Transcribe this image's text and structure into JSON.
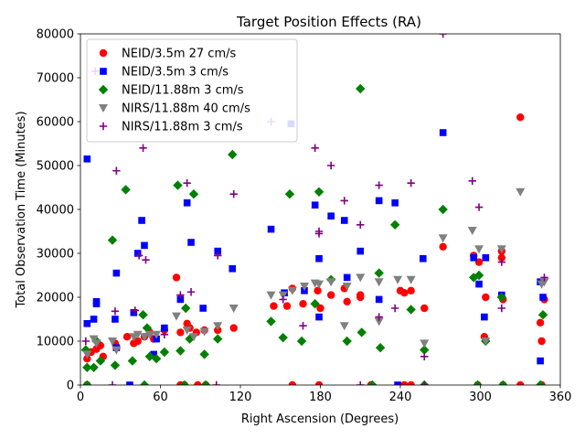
{
  "chart_data": {
    "type": "scatter",
    "title": "Target Position Effects (RA)",
    "xlabel": "Right Ascension (Degrees)",
    "ylabel": "Total Observation Time (Minutes)",
    "xlim": [
      0,
      360
    ],
    "ylim": [
      0,
      80000
    ],
    "xticks": [
      0,
      60,
      120,
      180,
      240,
      300,
      360
    ],
    "yticks": [
      0,
      10000,
      20000,
      30000,
      40000,
      50000,
      60000,
      70000,
      80000
    ],
    "grid": false,
    "legend_position": "upper-left",
    "series": [
      {
        "name": "NEID/3.5m 27 cm/s",
        "marker": "circle",
        "color": "#ff0000",
        "points": [
          [
            5,
            6000
          ],
          [
            8,
            7500
          ],
          [
            12,
            8200
          ],
          [
            15,
            9000
          ],
          [
            17,
            6500
          ],
          [
            26,
            9500
          ],
          [
            27,
            8500
          ],
          [
            35,
            11000
          ],
          [
            40,
            9500
          ],
          [
            43,
            10000
          ],
          [
            48,
            11000
          ],
          [
            52,
            12000
          ],
          [
            55,
            10500
          ],
          [
            63,
            12500
          ],
          [
            72,
            24500
          ],
          [
            75,
            12000
          ],
          [
            80,
            14000
          ],
          [
            82,
            13000
          ],
          [
            87,
            12000
          ],
          [
            93,
            12500
          ],
          [
            103,
            12500
          ],
          [
            115,
            13000
          ],
          [
            145,
            18000
          ],
          [
            155,
            18000
          ],
          [
            159,
            22000
          ],
          [
            167,
            18500
          ],
          [
            178,
            21500
          ],
          [
            180,
            17500
          ],
          [
            188,
            20500
          ],
          [
            198,
            22000
          ],
          [
            200,
            19000
          ],
          [
            210,
            20500
          ],
          [
            210,
            20000
          ],
          [
            240,
            21500
          ],
          [
            243,
            21000
          ],
          [
            248,
            21500
          ],
          [
            258,
            17500
          ],
          [
            272,
            31500
          ],
          [
            295,
            29500
          ],
          [
            299,
            28000
          ],
          [
            303,
            11000
          ],
          [
            304,
            20000
          ],
          [
            316,
            30500
          ],
          [
            316,
            29000
          ],
          [
            317,
            19500
          ],
          [
            330,
            61000
          ],
          [
            345,
            14200
          ],
          [
            346,
            10000
          ],
          [
            348,
            19500
          ],
          [
            5,
            0
          ],
          [
            75,
            0
          ],
          [
            78,
            0
          ],
          [
            88,
            0
          ],
          [
            94,
            0
          ],
          [
            159,
            0
          ],
          [
            179,
            0
          ],
          [
            218,
            0
          ],
          [
            243,
            0
          ],
          [
            248,
            0
          ],
          [
            298,
            0
          ],
          [
            317,
            0
          ],
          [
            330,
            0
          ],
          [
            346,
            0
          ]
        ]
      },
      {
        "name": "NEID/3.5m 3 cm/s",
        "marker": "square",
        "color": "#0000ff",
        "points": [
          [
            5,
            51500
          ],
          [
            5,
            14000
          ],
          [
            10,
            15000
          ],
          [
            12,
            19000
          ],
          [
            12,
            18500
          ],
          [
            26,
            15000
          ],
          [
            27,
            8500
          ],
          [
            27,
            25500
          ],
          [
            37,
            0
          ],
          [
            40,
            16500
          ],
          [
            43,
            30000
          ],
          [
            46,
            37500
          ],
          [
            48,
            31800
          ],
          [
            55,
            7000
          ],
          [
            57,
            10500
          ],
          [
            63,
            13000
          ],
          [
            75,
            19500
          ],
          [
            80,
            41500
          ],
          [
            83,
            32500
          ],
          [
            92,
            17500
          ],
          [
            103,
            30500
          ],
          [
            114,
            26500
          ],
          [
            143,
            35500
          ],
          [
            153,
            21000
          ],
          [
            158,
            59500
          ],
          [
            168,
            21500
          ],
          [
            176,
            41000
          ],
          [
            179,
            15500
          ],
          [
            179,
            28800
          ],
          [
            188,
            38500
          ],
          [
            198,
            37500
          ],
          [
            200,
            24500
          ],
          [
            210,
            30500
          ],
          [
            224,
            42000
          ],
          [
            224,
            19500
          ],
          [
            236,
            41500
          ],
          [
            238,
            0
          ],
          [
            257,
            28800
          ],
          [
            272,
            57500
          ],
          [
            295,
            29000
          ],
          [
            299,
            23000
          ],
          [
            303,
            15500
          ],
          [
            304,
            29000
          ],
          [
            316,
            20500
          ],
          [
            345,
            23500
          ],
          [
            345,
            5500
          ],
          [
            347,
            20000
          ]
        ]
      },
      {
        "name": "NEID/11.88m 3 cm/s",
        "marker": "diamond",
        "color": "#008000",
        "points": [
          [
            4,
            8000
          ],
          [
            5,
            4000
          ],
          [
            10,
            4000
          ],
          [
            12,
            10000
          ],
          [
            15,
            5500
          ],
          [
            24,
            33000
          ],
          [
            26,
            4500
          ],
          [
            34,
            44500
          ],
          [
            39,
            5500
          ],
          [
            47,
            16000
          ],
          [
            50,
            13000
          ],
          [
            52,
            6500
          ],
          [
            57,
            6000
          ],
          [
            63,
            7500
          ],
          [
            73,
            45500
          ],
          [
            75,
            7800
          ],
          [
            79,
            17500
          ],
          [
            82,
            10500
          ],
          [
            85,
            43500
          ],
          [
            93,
            7000
          ],
          [
            103,
            10500
          ],
          [
            114,
            52500
          ],
          [
            143,
            14500
          ],
          [
            152,
            10800
          ],
          [
            157,
            43500
          ],
          [
            166,
            10000
          ],
          [
            176,
            18500
          ],
          [
            179,
            44000
          ],
          [
            188,
            24000
          ],
          [
            200,
            10000
          ],
          [
            210,
            67500
          ],
          [
            211,
            12000
          ],
          [
            224,
            25500
          ],
          [
            225,
            8500
          ],
          [
            236,
            36500
          ],
          [
            248,
            17200
          ],
          [
            258,
            8000
          ],
          [
            272,
            40000
          ],
          [
            295,
            24500
          ],
          [
            299,
            25000
          ],
          [
            304,
            10000
          ],
          [
            316,
            20000
          ],
          [
            347,
            16000
          ],
          [
            5,
            0
          ],
          [
            48,
            0
          ],
          [
            78,
            0
          ],
          [
            94,
            0
          ],
          [
            219,
            0
          ],
          [
            258,
            0
          ],
          [
            298,
            0
          ],
          [
            317,
            0
          ],
          [
            345,
            0
          ]
        ]
      },
      {
        "name": "NIRS/11.88m 40 cm/s",
        "marker": "triangle-down",
        "color": "#808080",
        "points": [
          [
            5,
            7000
          ],
          [
            10,
            10500
          ],
          [
            12,
            9500
          ],
          [
            24,
            10000
          ],
          [
            27,
            8000
          ],
          [
            40,
            11000
          ],
          [
            43,
            11500
          ],
          [
            48,
            11000
          ],
          [
            52,
            11500
          ],
          [
            57,
            11500
          ],
          [
            72,
            15700
          ],
          [
            80,
            12500
          ],
          [
            85,
            11000
          ],
          [
            93,
            12200
          ],
          [
            103,
            13500
          ],
          [
            115,
            17500
          ],
          [
            143,
            20500
          ],
          [
            152,
            20500
          ],
          [
            159,
            21500
          ],
          [
            168,
            22500
          ],
          [
            176,
            23200
          ],
          [
            179,
            23000
          ],
          [
            188,
            23500
          ],
          [
            198,
            13500
          ],
          [
            200,
            22500
          ],
          [
            210,
            24500
          ],
          [
            224,
            23500
          ],
          [
            224,
            14500
          ],
          [
            238,
            24000
          ],
          [
            248,
            24000
          ],
          [
            258,
            9500
          ],
          [
            272,
            33500
          ],
          [
            294,
            35200
          ],
          [
            299,
            31000
          ],
          [
            304,
            10000
          ],
          [
            316,
            31000
          ],
          [
            330,
            44000
          ],
          [
            346,
            23000
          ],
          [
            348,
            23500
          ]
        ]
      },
      {
        "name": "NIRS/11.88m 3 cm/s",
        "marker": "plus",
        "color": "#800080",
        "points": [
          [
            4,
            10000
          ],
          [
            11,
            71500
          ],
          [
            26,
            16800
          ],
          [
            27,
            48800
          ],
          [
            41,
            17000
          ],
          [
            44,
            29500
          ],
          [
            47,
            54000
          ],
          [
            49,
            28500
          ],
          [
            63,
            11500
          ],
          [
            75,
            20500
          ],
          [
            80,
            46000
          ],
          [
            83,
            21200
          ],
          [
            103,
            29500
          ],
          [
            115,
            43500
          ],
          [
            143,
            60000
          ],
          [
            152,
            19500
          ],
          [
            167,
            13500
          ],
          [
            176,
            54000
          ],
          [
            179,
            34500
          ],
          [
            179,
            35000
          ],
          [
            188,
            50000
          ],
          [
            198,
            42000
          ],
          [
            210,
            36500
          ],
          [
            224,
            45500
          ],
          [
            224,
            15500
          ],
          [
            236,
            17500
          ],
          [
            248,
            46000
          ],
          [
            258,
            6500
          ],
          [
            272,
            80000
          ],
          [
            294,
            46500
          ],
          [
            299,
            40500
          ],
          [
            316,
            28000
          ],
          [
            316,
            17500
          ],
          [
            348,
            24500
          ],
          [
            24,
            0
          ],
          [
            102,
            0
          ],
          [
            210,
            0
          ],
          [
            258,
            0
          ]
        ]
      }
    ]
  }
}
